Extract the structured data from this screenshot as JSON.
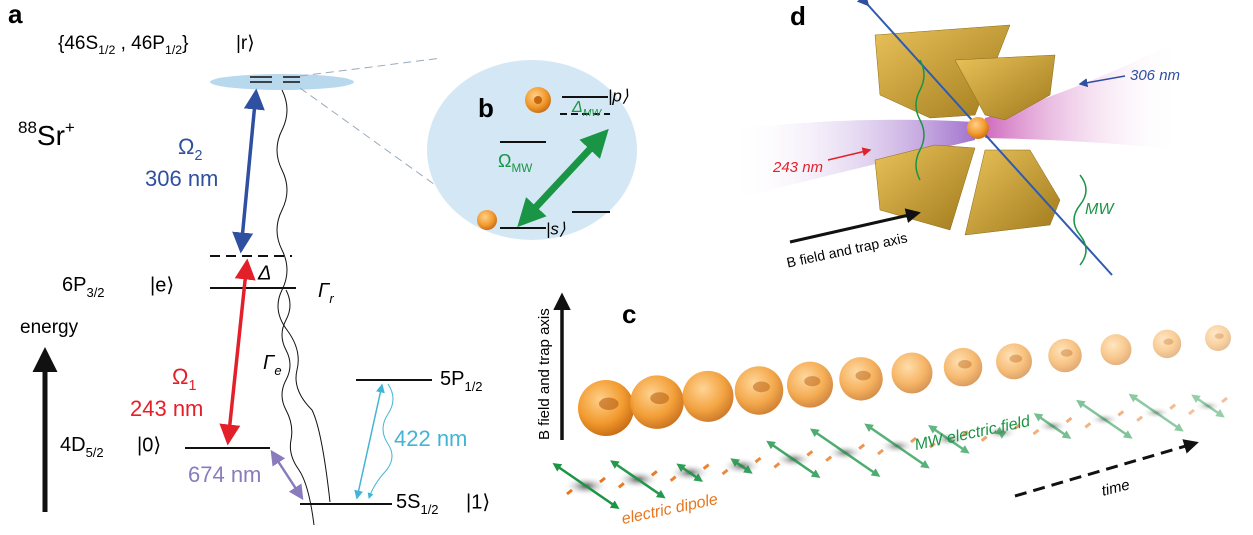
{
  "panels": {
    "a": {
      "label": "a",
      "rydberg_states": {
        "open": "{46S",
        "s_sub": "1/2",
        "mid": " , 46P",
        "p_sub": "1/2",
        "close": "}"
      },
      "ket_r": "|r⟩",
      "ion": {
        "sup": "88",
        "main": "Sr",
        "charge": "+"
      },
      "omega2": {
        "symbol": "Ω",
        "sub": "2",
        "wavelength": "306 nm"
      },
      "omega1": {
        "symbol": "Ω",
        "sub": "1",
        "wavelength": "243 nm"
      },
      "detuning": "Δ",
      "level_e": {
        "main": "6P",
        "sub": "3/2",
        "ket": "|e⟩"
      },
      "gamma_r": {
        "symbol": "Γ",
        "sub": "r"
      },
      "gamma_e": {
        "symbol": "Γ",
        "sub": "e"
      },
      "energy": "energy",
      "level_0": {
        "main": "4D",
        "sub": "5/2",
        "ket": "|0⟩"
      },
      "wl_674": "674 nm",
      "level_p": {
        "main": "5P",
        "sub": "1/2"
      },
      "wl_422": "422 nm",
      "level_1": {
        "main": "5S",
        "sub": "1/2",
        "ket": "|1⟩"
      }
    },
    "b": {
      "label": "b",
      "ket_p": "|p⟩",
      "ket_s": "|s⟩",
      "omega_mw": {
        "symbol": "Ω",
        "sub": "MW"
      },
      "delta_mw": {
        "symbol": "Δ",
        "sub": "MW"
      }
    },
    "c": {
      "label": "c",
      "axis": "B field and trap axis",
      "mw_field": "MW electric field",
      "dipole": "electric dipole",
      "time": "time"
    },
    "d": {
      "label": "d",
      "wl_306": "306 nm",
      "wl_243": "243 nm",
      "mw": "MW",
      "axis": "B field and trap axis"
    }
  }
}
